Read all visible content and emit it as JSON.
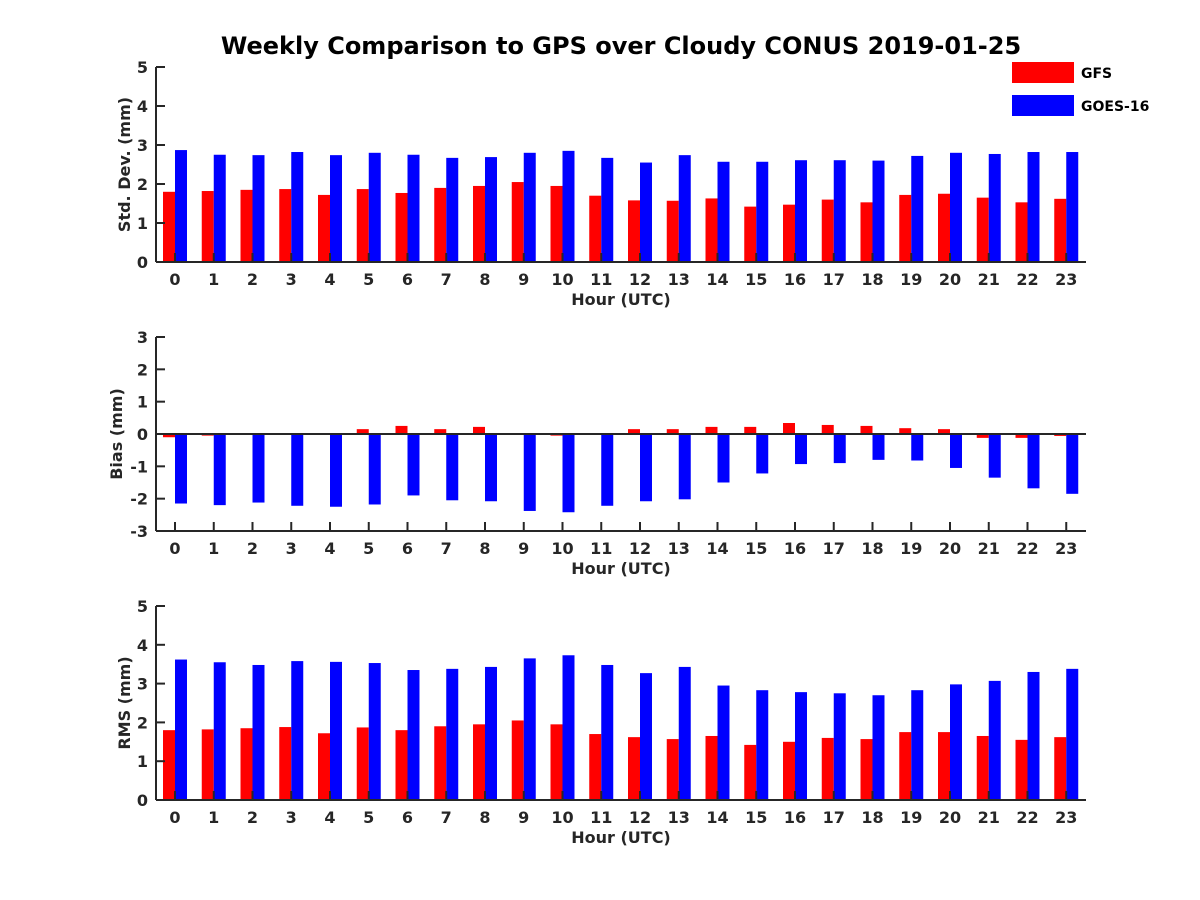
{
  "figure_title": "Weekly Comparison to GPS over Cloudy CONUS 2019-01-25",
  "legend": [
    {
      "label": "GFS",
      "color": "#ff0000"
    },
    {
      "label": "GOES-16",
      "color": "#0000ff"
    }
  ],
  "chart_data": [
    {
      "type": "bar",
      "ylabel": "Std. Dev. (mm)",
      "xlabel": "Hour (UTC)",
      "ylim": [
        0,
        5
      ],
      "yticks": [
        0,
        1,
        2,
        3,
        4,
        5
      ],
      "categories": [
        "0",
        "1",
        "2",
        "3",
        "4",
        "5",
        "6",
        "7",
        "8",
        "9",
        "10",
        "11",
        "12",
        "13",
        "14",
        "15",
        "16",
        "17",
        "18",
        "19",
        "20",
        "21",
        "22",
        "23"
      ],
      "series": [
        {
          "name": "GFS",
          "color": "#ff0000",
          "values": [
            1.8,
            1.82,
            1.85,
            1.87,
            1.72,
            1.87,
            1.77,
            1.9,
            1.95,
            2.05,
            1.95,
            1.7,
            1.58,
            1.57,
            1.63,
            1.42,
            1.47,
            1.6,
            1.53,
            1.72,
            1.75,
            1.65,
            1.53,
            1.62
          ]
        },
        {
          "name": "GOES-16",
          "color": "#0000ff",
          "values": [
            2.87,
            2.75,
            2.74,
            2.82,
            2.74,
            2.8,
            2.75,
            2.67,
            2.69,
            2.8,
            2.85,
            2.67,
            2.55,
            2.74,
            2.57,
            2.57,
            2.61,
            2.61,
            2.6,
            2.72,
            2.8,
            2.77,
            2.82,
            2.82
          ]
        }
      ]
    },
    {
      "type": "bar",
      "ylabel": "Bias (mm)",
      "xlabel": "Hour (UTC)",
      "ylim": [
        -3,
        3
      ],
      "yticks": [
        -3,
        -2,
        -1,
        0,
        1,
        2,
        3
      ],
      "categories": [
        "0",
        "1",
        "2",
        "3",
        "4",
        "5",
        "6",
        "7",
        "8",
        "9",
        "10",
        "11",
        "12",
        "13",
        "14",
        "15",
        "16",
        "17",
        "18",
        "19",
        "20",
        "21",
        "22",
        "23"
      ],
      "series": [
        {
          "name": "GFS",
          "color": "#ff0000",
          "values": [
            -0.1,
            -0.05,
            -0.02,
            -0.03,
            -0.02,
            0.15,
            0.25,
            0.15,
            0.22,
            0.0,
            -0.05,
            0.0,
            0.15,
            0.15,
            0.22,
            0.22,
            0.34,
            0.28,
            0.25,
            0.18,
            0.15,
            -0.12,
            -0.12,
            -0.06
          ]
        },
        {
          "name": "GOES-16",
          "color": "#0000ff",
          "values": [
            -2.15,
            -2.2,
            -2.12,
            -2.22,
            -2.25,
            -2.18,
            -1.9,
            -2.05,
            -2.08,
            -2.38,
            -2.42,
            -2.22,
            -2.08,
            -2.02,
            -1.5,
            -1.22,
            -0.93,
            -0.9,
            -0.8,
            -0.82,
            -1.05,
            -1.35,
            -1.68,
            -1.85
          ]
        }
      ]
    },
    {
      "type": "bar",
      "ylabel": "RMS (mm)",
      "xlabel": "Hour (UTC)",
      "ylim": [
        0,
        5
      ],
      "yticks": [
        0,
        1,
        2,
        3,
        4,
        5
      ],
      "categories": [
        "0",
        "1",
        "2",
        "3",
        "4",
        "5",
        "6",
        "7",
        "8",
        "9",
        "10",
        "11",
        "12",
        "13",
        "14",
        "15",
        "16",
        "17",
        "18",
        "19",
        "20",
        "21",
        "22",
        "23"
      ],
      "series": [
        {
          "name": "GFS",
          "color": "#ff0000",
          "values": [
            1.8,
            1.82,
            1.85,
            1.88,
            1.72,
            1.87,
            1.8,
            1.9,
            1.95,
            2.05,
            1.95,
            1.7,
            1.62,
            1.57,
            1.65,
            1.42,
            1.5,
            1.6,
            1.57,
            1.75,
            1.75,
            1.65,
            1.55,
            1.62
          ]
        },
        {
          "name": "GOES-16",
          "color": "#0000ff",
          "values": [
            3.62,
            3.55,
            3.48,
            3.58,
            3.56,
            3.53,
            3.35,
            3.38,
            3.43,
            3.65,
            3.73,
            3.48,
            3.27,
            3.43,
            2.95,
            2.83,
            2.78,
            2.75,
            2.7,
            2.83,
            2.98,
            3.07,
            3.3,
            3.38
          ]
        }
      ]
    }
  ]
}
